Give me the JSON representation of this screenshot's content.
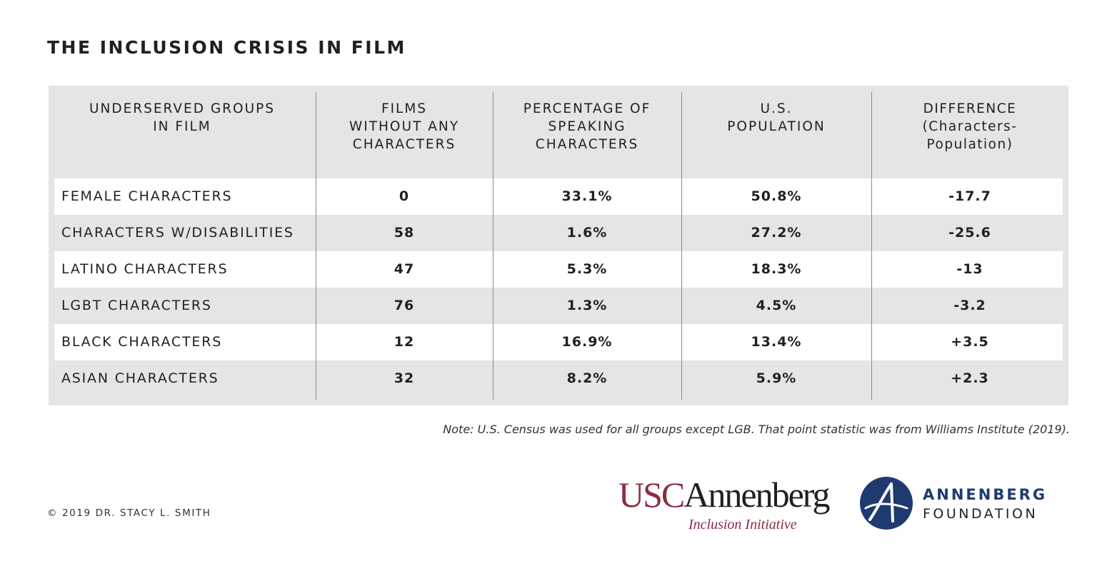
{
  "title": "THE INCLUSION CRISIS IN FILM",
  "chart_data": {
    "type": "table",
    "columns": [
      "UNDERSERVED GROUPS\nIN FILM",
      "FILMS\nWITHOUT ANY\nCHARACTERS",
      "PERCENTAGE OF\nSPEAKING\nCHARACTERS",
      "U.S.\nPOPULATION",
      "DIFFERENCE\n(Characters-\nPopulation)"
    ],
    "rows": [
      {
        "group": "FEMALE CHARACTERS",
        "films_without": "0",
        "pct_speaking": "33.1%",
        "us_population": "50.8%",
        "difference": "-17.7"
      },
      {
        "group": "CHARACTERS W/DISABILITIES",
        "films_without": "58",
        "pct_speaking": "1.6%",
        "us_population": "27.2%",
        "difference": "-25.6"
      },
      {
        "group": "LATINO CHARACTERS",
        "films_without": "47",
        "pct_speaking": "5.3%",
        "us_population": "18.3%",
        "difference": "-13"
      },
      {
        "group": "LGBT CHARACTERS",
        "films_without": "76",
        "pct_speaking": "1.3%",
        "us_population": "4.5%",
        "difference": "-3.2"
      },
      {
        "group": "BLACK CHARACTERS",
        "films_without": "12",
        "pct_speaking": "16.9%",
        "us_population": "13.4%",
        "difference": "+3.5"
      },
      {
        "group": "ASIAN CHARACTERS",
        "films_without": "32",
        "pct_speaking": "8.2%",
        "us_population": "5.9%",
        "difference": "+2.3"
      }
    ]
  },
  "note": "Note: U.S. Census was used for all groups except LGB. That point statistic was from Williams Institute (2019).",
  "copyright": "© 2019 DR. STACY L. SMITH",
  "logos": {
    "usc_part1": "USC",
    "usc_part2": "Annenberg",
    "usc_sub": "Inclusion Initiative",
    "af_name": "ANNENBERG",
    "af_sub": "FOUNDATION"
  },
  "colors": {
    "usc_cardinal": "#8c2c3e",
    "annenberg_navy": "#1f3a6e",
    "table_band": "#e5e5e5",
    "text": "#231f20"
  }
}
